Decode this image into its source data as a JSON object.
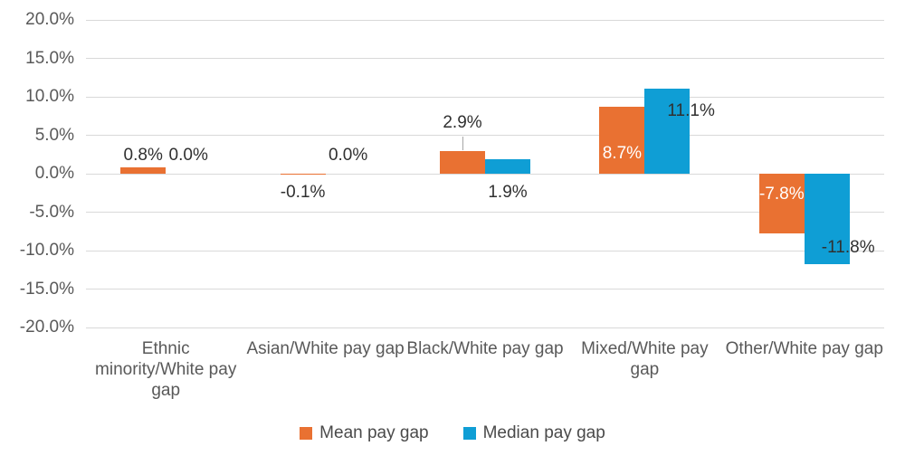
{
  "chart_data": {
    "type": "bar",
    "title": "",
    "xlabel": "",
    "ylabel": "",
    "grid": true,
    "categories": [
      "Ethnic minority/White pay gap",
      "Asian/White pay gap",
      "Black/White pay gap",
      "Mixed/White pay gap",
      "Other/White pay gap"
    ],
    "series": [
      {
        "name": "Mean pay gap",
        "color": "#E97132",
        "values": [
          0.8,
          -0.1,
          2.9,
          8.7,
          -7.8
        ],
        "data_labels": [
          "0.8%",
          "-0.1%",
          "2.9%",
          "8.7%",
          "-7.8%"
        ],
        "label_placement": [
          "above-end",
          "below-axis",
          "leader-above",
          "inside-base",
          "inside-base"
        ]
      },
      {
        "name": "Median pay gap",
        "color": "#0F9ED5",
        "values": [
          0.0,
          0.0,
          1.9,
          11.1,
          -11.8
        ],
        "data_labels": [
          "0.0%",
          "0.0%",
          "1.9%",
          "11.1%",
          "-11.8%"
        ],
        "label_placement": [
          "above-axis",
          "above-axis",
          "below-axis",
          "end-right",
          "end-right"
        ]
      }
    ],
    "y_axis": {
      "min": -20,
      "max": 20,
      "step": 5,
      "tick_labels": [
        "20.0%",
        "15.0%",
        "10.0%",
        "5.0%",
        "0.0%",
        "-5.0%",
        "-10.0%",
        "-15.0%",
        "-20.0%"
      ]
    },
    "legend": {
      "position": "bottom",
      "items": [
        {
          "label": "Mean pay gap",
          "color": "#E97132"
        },
        {
          "label": "Median pay gap",
          "color": "#0F9ED5"
        }
      ]
    },
    "colors": {
      "gridline": "#D9D9D9",
      "tick_text": "#595959",
      "category_text": "#595959",
      "data_label_text": "#303030",
      "inside_label_text": "#FFFFFF",
      "leader_line": "#A6A6A6"
    }
  }
}
